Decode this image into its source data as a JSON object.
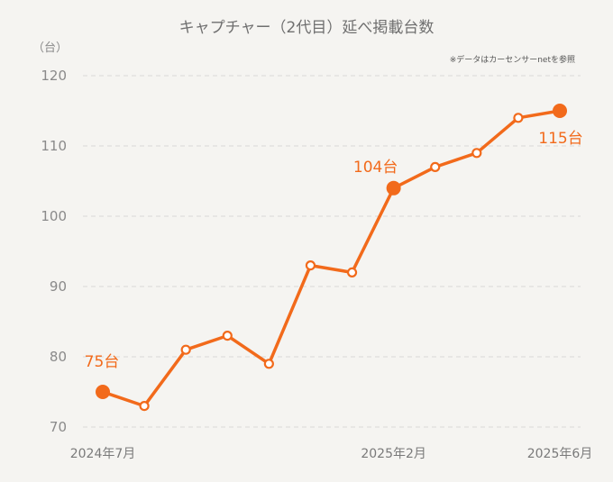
{
  "chart_data": {
    "type": "line",
    "title": "キャプチャー（2代目）延べ掲載台数",
    "ylabel": "（台）",
    "source_note": "※データはカーセンサーnetを参照",
    "ylim": [
      70,
      120
    ],
    "yticks": [
      70,
      80,
      90,
      100,
      110,
      120
    ],
    "x_tick_labels": [
      {
        "index": 0,
        "label": "2024年7月"
      },
      {
        "index": 7,
        "label": "2025年2月"
      },
      {
        "index": 11,
        "label": "2025年6月"
      }
    ],
    "x": [
      "2024年7月",
      "",
      "",
      "",
      "",
      "",
      "",
      "2025年2月",
      "",
      "",
      "",
      "2025年6月"
    ],
    "series": [
      {
        "values": [
          75,
          73,
          81,
          83,
          79,
          93,
          92,
          104,
          107,
          109,
          114,
          115
        ]
      }
    ],
    "highlights": [
      {
        "index": 0,
        "label": "75台"
      },
      {
        "index": 7,
        "label": "104台"
      },
      {
        "index": 11,
        "label": "115台"
      }
    ],
    "grid": true,
    "line_color": "#f26a1b"
  }
}
